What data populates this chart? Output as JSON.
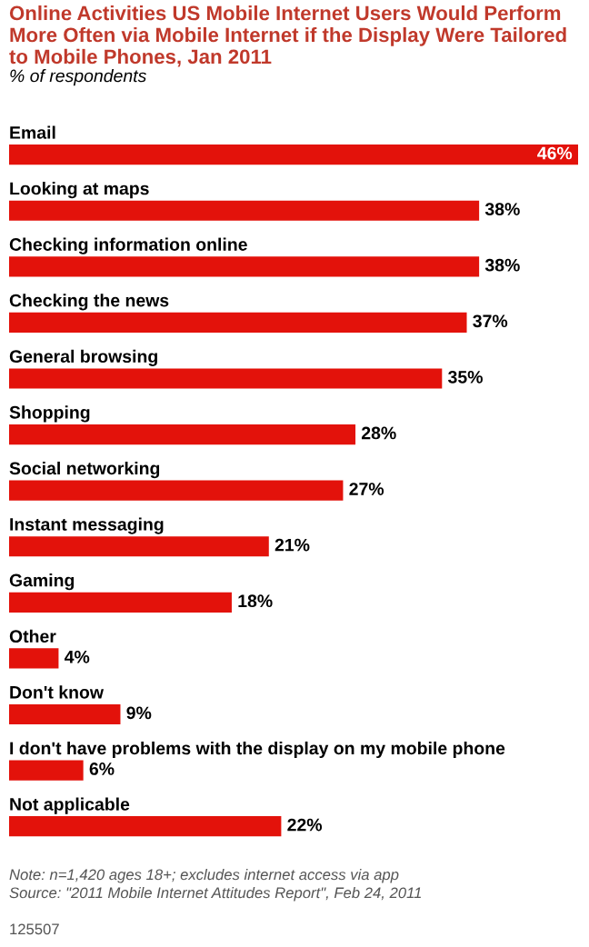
{
  "chart_data": {
    "type": "bar",
    "orientation": "horizontal",
    "title": "Online Activities US Mobile Internet Users Would Perform More Often via Mobile Internet if the Display Were Tailored to Mobile Phones, Jan 2011",
    "subtitle": "% of respondents",
    "categories": [
      "Email",
      "Looking at maps",
      "Checking information online",
      "Checking the news",
      "General browsing",
      "Shopping",
      "Social networking",
      "Instant messaging",
      "Gaming",
      "Other",
      "Don't know",
      "I don't have problems with the display on my mobile phone",
      "Not applicable"
    ],
    "values": [
      46,
      38,
      38,
      37,
      35,
      28,
      27,
      21,
      18,
      4,
      9,
      6,
      22
    ],
    "value_labels": [
      "46%",
      "38%",
      "38%",
      "37%",
      "35%",
      "28%",
      "27%",
      "21%",
      "18%",
      "4%",
      "9%",
      "6%",
      "22%"
    ],
    "color": "#e3120b",
    "annotations": [
      "Note: n=1,420 ages 18+; excludes internet access via app",
      "Source: \"2011 Mobile Internet Attitudes Report\", Feb 24, 2011",
      "125507"
    ]
  }
}
